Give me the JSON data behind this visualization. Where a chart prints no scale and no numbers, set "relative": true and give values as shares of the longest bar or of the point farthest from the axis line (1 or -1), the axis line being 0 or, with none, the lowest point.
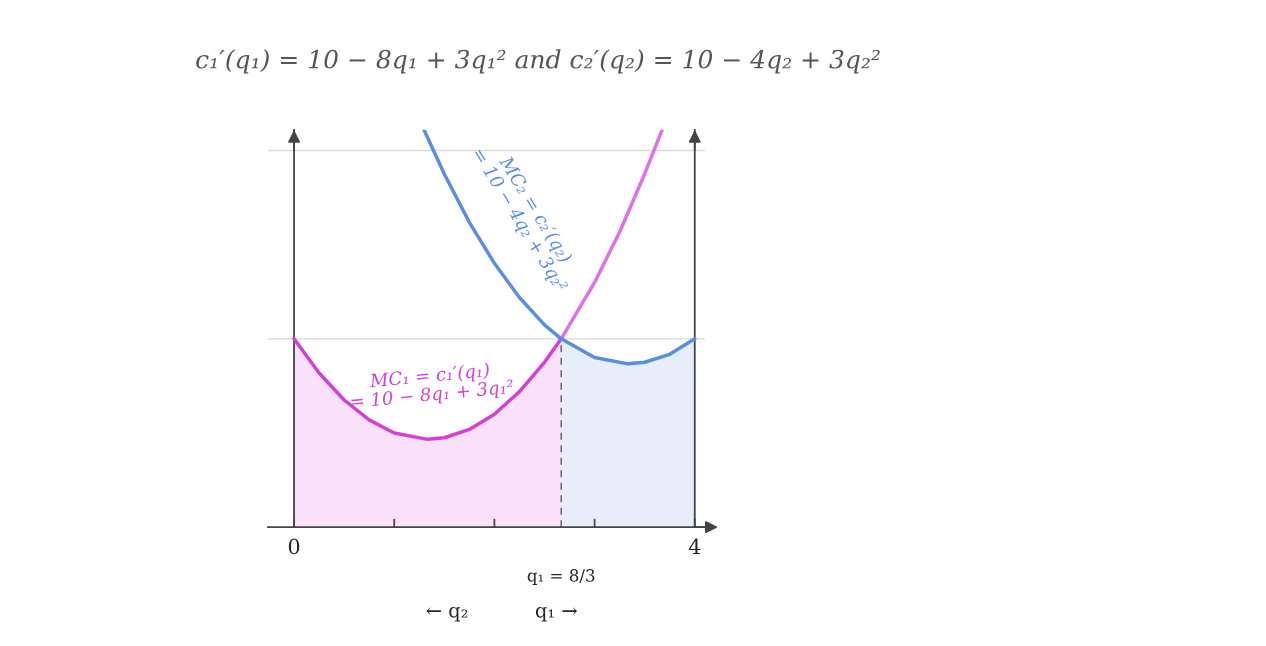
{
  "chart_data": {
    "type": "line",
    "relative": true,
    "title": "c₁′(q₁) = 10 − 8q₁ + 3q₁² and c₂′(q₂) = 10 − 4q₂ + 3q₂²",
    "xlim": [
      -0.26,
      4.1
    ],
    "xticks": [
      0,
      {
        "value": 1,
        "label": null
      },
      {
        "value": 2,
        "label": null
      },
      {
        "value": 3,
        "label": null
      },
      4
    ],
    "series": [
      {
        "type": "area",
        "name": "MC₁ = c₁′(q₁)\n= 10 − 8q₁ + 3q₁²",
        "color": "#d63fd6",
        "x": [
          0,
          0.25,
          0.5,
          0.75,
          1.0,
          1.333,
          1.5,
          1.75,
          2.0,
          2.25,
          2.5,
          2.667
        ],
        "values": [
          0.474,
          0.388,
          0.32,
          0.27,
          0.237,
          0.221,
          0.225,
          0.246,
          0.284,
          0.341,
          0.415,
          0.474
        ]
      },
      {
        "type": "line",
        "color": "#e070e8",
        "x": [
          2.667,
          3.0,
          3.25,
          3.5,
          3.674
        ],
        "values": [
          0.474,
          0.616,
          0.743,
          0.889,
          1.0
        ]
      },
      {
        "type": "line",
        "name": "MC₂ = c₂′(q₂)\n= 10 − 4q₂ + 3q₂²",
        "color": "#5b8ee0",
        "x": [
          1.297,
          1.5,
          1.75,
          2.0,
          2.25,
          2.5,
          2.667
        ],
        "values": [
          1.0,
          0.889,
          0.767,
          0.664,
          0.578,
          0.509,
          0.474
        ]
      },
      {
        "type": "area",
        "color": "#5b8ee0",
        "x": [
          2.667,
          3.0,
          3.333,
          3.5,
          3.75,
          4.0
        ],
        "values": [
          0.474,
          0.427,
          0.411,
          0.415,
          0.435,
          0.474
        ]
      }
    ],
    "ref_lines": [
      {
        "axis": "y",
        "value": 0.474,
        "color": "#d9d9d9"
      },
      {
        "axis": "y",
        "value": 0.948,
        "color": "#d9d9d9"
      },
      {
        "axis": "x",
        "value": 2.667,
        "label": "q₁ = 8/3",
        "color": "#555555",
        "line_style": "dashed"
      }
    ],
    "annotations": [
      "← q₂",
      "q₁ →"
    ]
  }
}
